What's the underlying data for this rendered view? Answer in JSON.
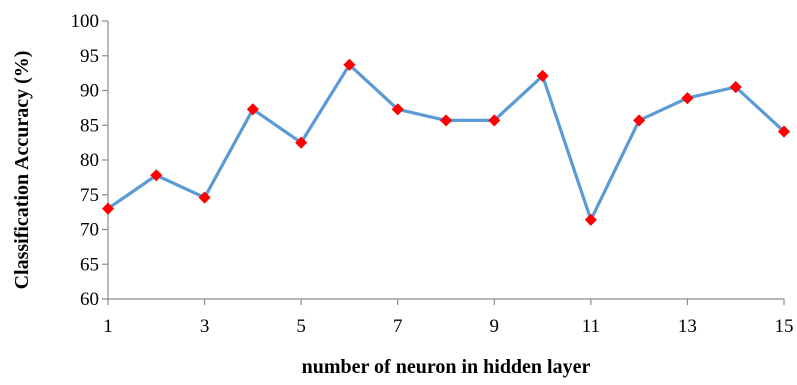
{
  "chart_data": {
    "type": "line",
    "title": "",
    "xlabel": "number of neuron in hidden layer",
    "ylabel": "Classification Accuracy (%)",
    "x": [
      1,
      2,
      3,
      4,
      5,
      6,
      7,
      8,
      9,
      10,
      11,
      12,
      13,
      14,
      15
    ],
    "x_tick_labels": [
      "1",
      "3",
      "5",
      "7",
      "9",
      "11",
      "13",
      "15"
    ],
    "x_tick_values": [
      1,
      3,
      5,
      7,
      9,
      11,
      13,
      15
    ],
    "xlim": [
      1,
      15
    ],
    "y_tick_labels": [
      "60",
      "65",
      "70",
      "75",
      "80",
      "85",
      "90",
      "95",
      "100"
    ],
    "y_tick_values": [
      60,
      65,
      70,
      75,
      80,
      85,
      90,
      95,
      100
    ],
    "ylim": [
      60,
      100
    ],
    "series": [
      {
        "values": [
          73.0,
          77.8,
          74.6,
          87.3,
          82.5,
          93.7,
          87.3,
          85.7,
          85.7,
          92.1,
          71.4,
          85.7,
          88.9,
          90.5,
          84.1
        ],
        "line_color": "#5b9bd5",
        "marker_color": "#ff0000",
        "marker": "diamond"
      }
    ],
    "grid": false,
    "legend": "none"
  }
}
